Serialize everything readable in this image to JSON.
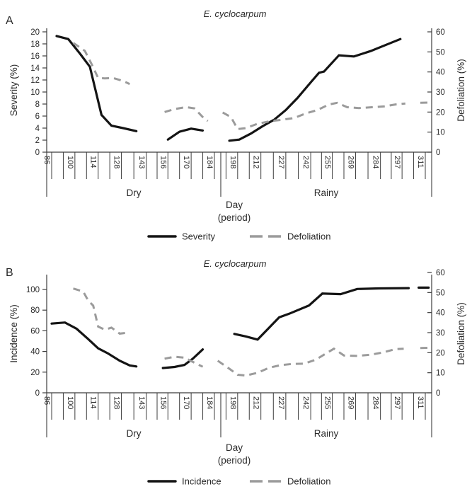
{
  "figure_type": "dual-panel line chart",
  "colors": {
    "series_dark": "#141414",
    "series_gray": "#9b9b9b",
    "axis": "#3c3c3c",
    "text": "#2a2a2a",
    "background": "#ffffff"
  },
  "x_domain": {
    "min_day": 86,
    "max_day": 311
  },
  "chart_data": [
    {
      "panel_label": "A",
      "title": "E. cyclocarpum",
      "type": "line",
      "left_axis": {
        "label": "Severity (%)",
        "min": 0,
        "max": 20,
        "ticks": [
          0,
          2,
          4,
          6,
          8,
          10,
          12,
          14,
          16,
          18,
          20
        ]
      },
      "right_axis": {
        "label": "Defoliation (%)",
        "min": 0,
        "max": 60,
        "ticks": [
          0,
          10,
          20,
          30,
          40,
          50,
          60
        ]
      },
      "x_axis": {
        "label_line1": "Day",
        "label_line2": "(period)",
        "tick_days": [
          86,
          100,
          114,
          128,
          143,
          156,
          170,
          184,
          198,
          212,
          227,
          242,
          255,
          269,
          284,
          297,
          311
        ],
        "periods": [
          {
            "label": "Dry"
          },
          {
            "label": "Rainy"
          }
        ]
      },
      "legend": [
        {
          "label": "Severity",
          "style": "solid"
        },
        {
          "label": "Defoliation",
          "style": "dashed"
        }
      ],
      "series": [
        {
          "name": "Severity",
          "axis": "left",
          "style": "solid",
          "segments": [
            [
              [
                89,
                19.3
              ],
              [
                96,
                18.8
              ],
              [
                103,
                16.4
              ],
              [
                109,
                14.2
              ],
              [
                116,
                6.2
              ],
              [
                122,
                4.4
              ],
              [
                129,
                4.0
              ],
              [
                137,
                3.5
              ]
            ],
            [
              [
                156,
                2.1
              ],
              [
                163,
                3.4
              ],
              [
                170,
                3.9
              ],
              [
                177,
                3.6
              ]
            ],
            [
              [
                193,
                1.9
              ],
              [
                199,
                2.1
              ],
              [
                206,
                3.1
              ],
              [
                213,
                4.3
              ],
              [
                220,
                5.4
              ],
              [
                227,
                7.0
              ],
              [
                234,
                9.0
              ],
              [
                242,
                11.6
              ],
              [
                247,
                13.2
              ],
              [
                250,
                13.4
              ],
              [
                259,
                16.1
              ],
              [
                268,
                15.9
              ],
              [
                278,
                16.8
              ],
              [
                287,
                17.8
              ],
              [
                296,
                18.8
              ]
            ]
          ]
        },
        {
          "name": "Defoliation",
          "axis": "right",
          "style": "dashed",
          "segments": [
            [
              [
                99,
                54.5
              ],
              [
                106,
                50.5
              ],
              [
                110,
                44
              ],
              [
                114,
                37
              ],
              [
                118,
                36.8
              ],
              [
                123,
                37
              ],
              [
                129,
                35.5
              ],
              [
                133,
                34
              ]
            ],
            [
              [
                154,
                20
              ],
              [
                160,
                21.5
              ],
              [
                167,
                22.5
              ],
              [
                172,
                21.8
              ],
              [
                177,
                17.5
              ],
              [
                180,
                15.5
              ]
            ],
            [
              [
                189,
                19.8
              ],
              [
                194,
                17.5
              ],
              [
                198,
                11.5
              ],
              [
                203,
                12
              ],
              [
                210,
                14.2
              ],
              [
                218,
                15.5
              ],
              [
                225,
                16.2
              ],
              [
                232,
                17
              ],
              [
                239,
                19.3
              ],
              [
                246,
                21
              ],
              [
                253,
                23.8
              ],
              [
                258,
                24.6
              ],
              [
                264,
                22.4
              ],
              [
                271,
                22
              ],
              [
                279,
                22.4
              ],
              [
                286,
                22.8
              ],
              [
                293,
                23.8
              ],
              [
                299,
                24.3
              ]
            ],
            [
              [
                308,
                24.6
              ],
              [
                313,
                24.7
              ]
            ]
          ]
        }
      ]
    },
    {
      "panel_label": "B",
      "title": "E. cyclocarpum",
      "type": "line",
      "left_axis": {
        "label": "Incidence (%)",
        "min": 0,
        "max": 100,
        "ticks": [
          0,
          20,
          40,
          60,
          80,
          100
        ]
      },
      "right_axis": {
        "label": "Defoliation (%)",
        "min": 0,
        "max": 60,
        "ticks": [
          0,
          10,
          20,
          30,
          40,
          50,
          60
        ]
      },
      "x_axis": {
        "label_line1": "Day",
        "label_line2": "(period)",
        "tick_days": [
          86,
          100,
          114,
          128,
          143,
          156,
          170,
          184,
          198,
          212,
          227,
          242,
          255,
          269,
          284,
          297,
          311
        ],
        "periods": [
          {
            "label": "Dry"
          },
          {
            "label": "Rainy"
          }
        ]
      },
      "legend": [
        {
          "label": "Incidence",
          "style": "solid"
        },
        {
          "label": "Defoliation",
          "style": "dashed"
        }
      ],
      "series": [
        {
          "name": "Incidence",
          "axis": "left",
          "style": "solid",
          "segments": [
            [
              [
                86,
                67
              ],
              [
                94,
                68
              ],
              [
                101,
                62
              ],
              [
                108,
                52
              ],
              [
                114,
                43
              ],
              [
                120,
                38
              ],
              [
                127,
                31
              ],
              [
                133,
                26.5
              ],
              [
                137,
                25.5
              ]
            ],
            [
              [
                153,
                24
              ],
              [
                160,
                25
              ],
              [
                166,
                27
              ],
              [
                171,
                33
              ],
              [
                177,
                42
              ]
            ],
            [
              [
                196,
                57
              ],
              [
                203,
                54.5
              ],
              [
                210,
                51.5
              ],
              [
                223,
                73
              ],
              [
                229,
                76.5
              ],
              [
                241,
                84.5
              ],
              [
                249,
                96
              ],
              [
                260,
                95.5
              ],
              [
                270,
                100.5
              ],
              [
                283,
                101
              ],
              [
                301,
                101.3
              ]
            ],
            [
              [
                307,
                101.8
              ],
              [
                313,
                101.8
              ]
            ]
          ]
        },
        {
          "name": "Defoliation",
          "axis": "right",
          "style": "dashed",
          "segments": [
            [
              [
                99,
                52
              ],
              [
                105,
                50.5
              ],
              [
                108,
                46
              ],
              [
                111,
                43.5
              ],
              [
                114,
                33
              ],
              [
                118,
                31.5
              ],
              [
                122,
                32.5
              ],
              [
                127,
                29.5
              ],
              [
                132,
                30
              ]
            ],
            [
              [
                154,
                17
              ],
              [
                160,
                18
              ],
              [
                166,
                17.5
              ],
              [
                172,
                15
              ],
              [
                177,
                13
              ]
            ],
            [
              [
                186,
                16
              ],
              [
                193,
                12
              ],
              [
                198,
                9
              ],
              [
                203,
                8.6
              ],
              [
                210,
                10
              ],
              [
                217,
                12.5
              ],
              [
                224,
                13.8
              ],
              [
                231,
                14.4
              ],
              [
                238,
                14.5
              ],
              [
                245,
                16.5
              ],
              [
                252,
                20
              ],
              [
                256,
                22
              ],
              [
                262,
                18.6
              ],
              [
                270,
                18.4
              ],
              [
                278,
                19
              ],
              [
                286,
                20.2
              ],
              [
                293,
                21.8
              ],
              [
                298,
                22
              ]
            ],
            [
              [
                308,
                22.3
              ],
              [
                313,
                22.4
              ]
            ]
          ]
        }
      ]
    }
  ]
}
